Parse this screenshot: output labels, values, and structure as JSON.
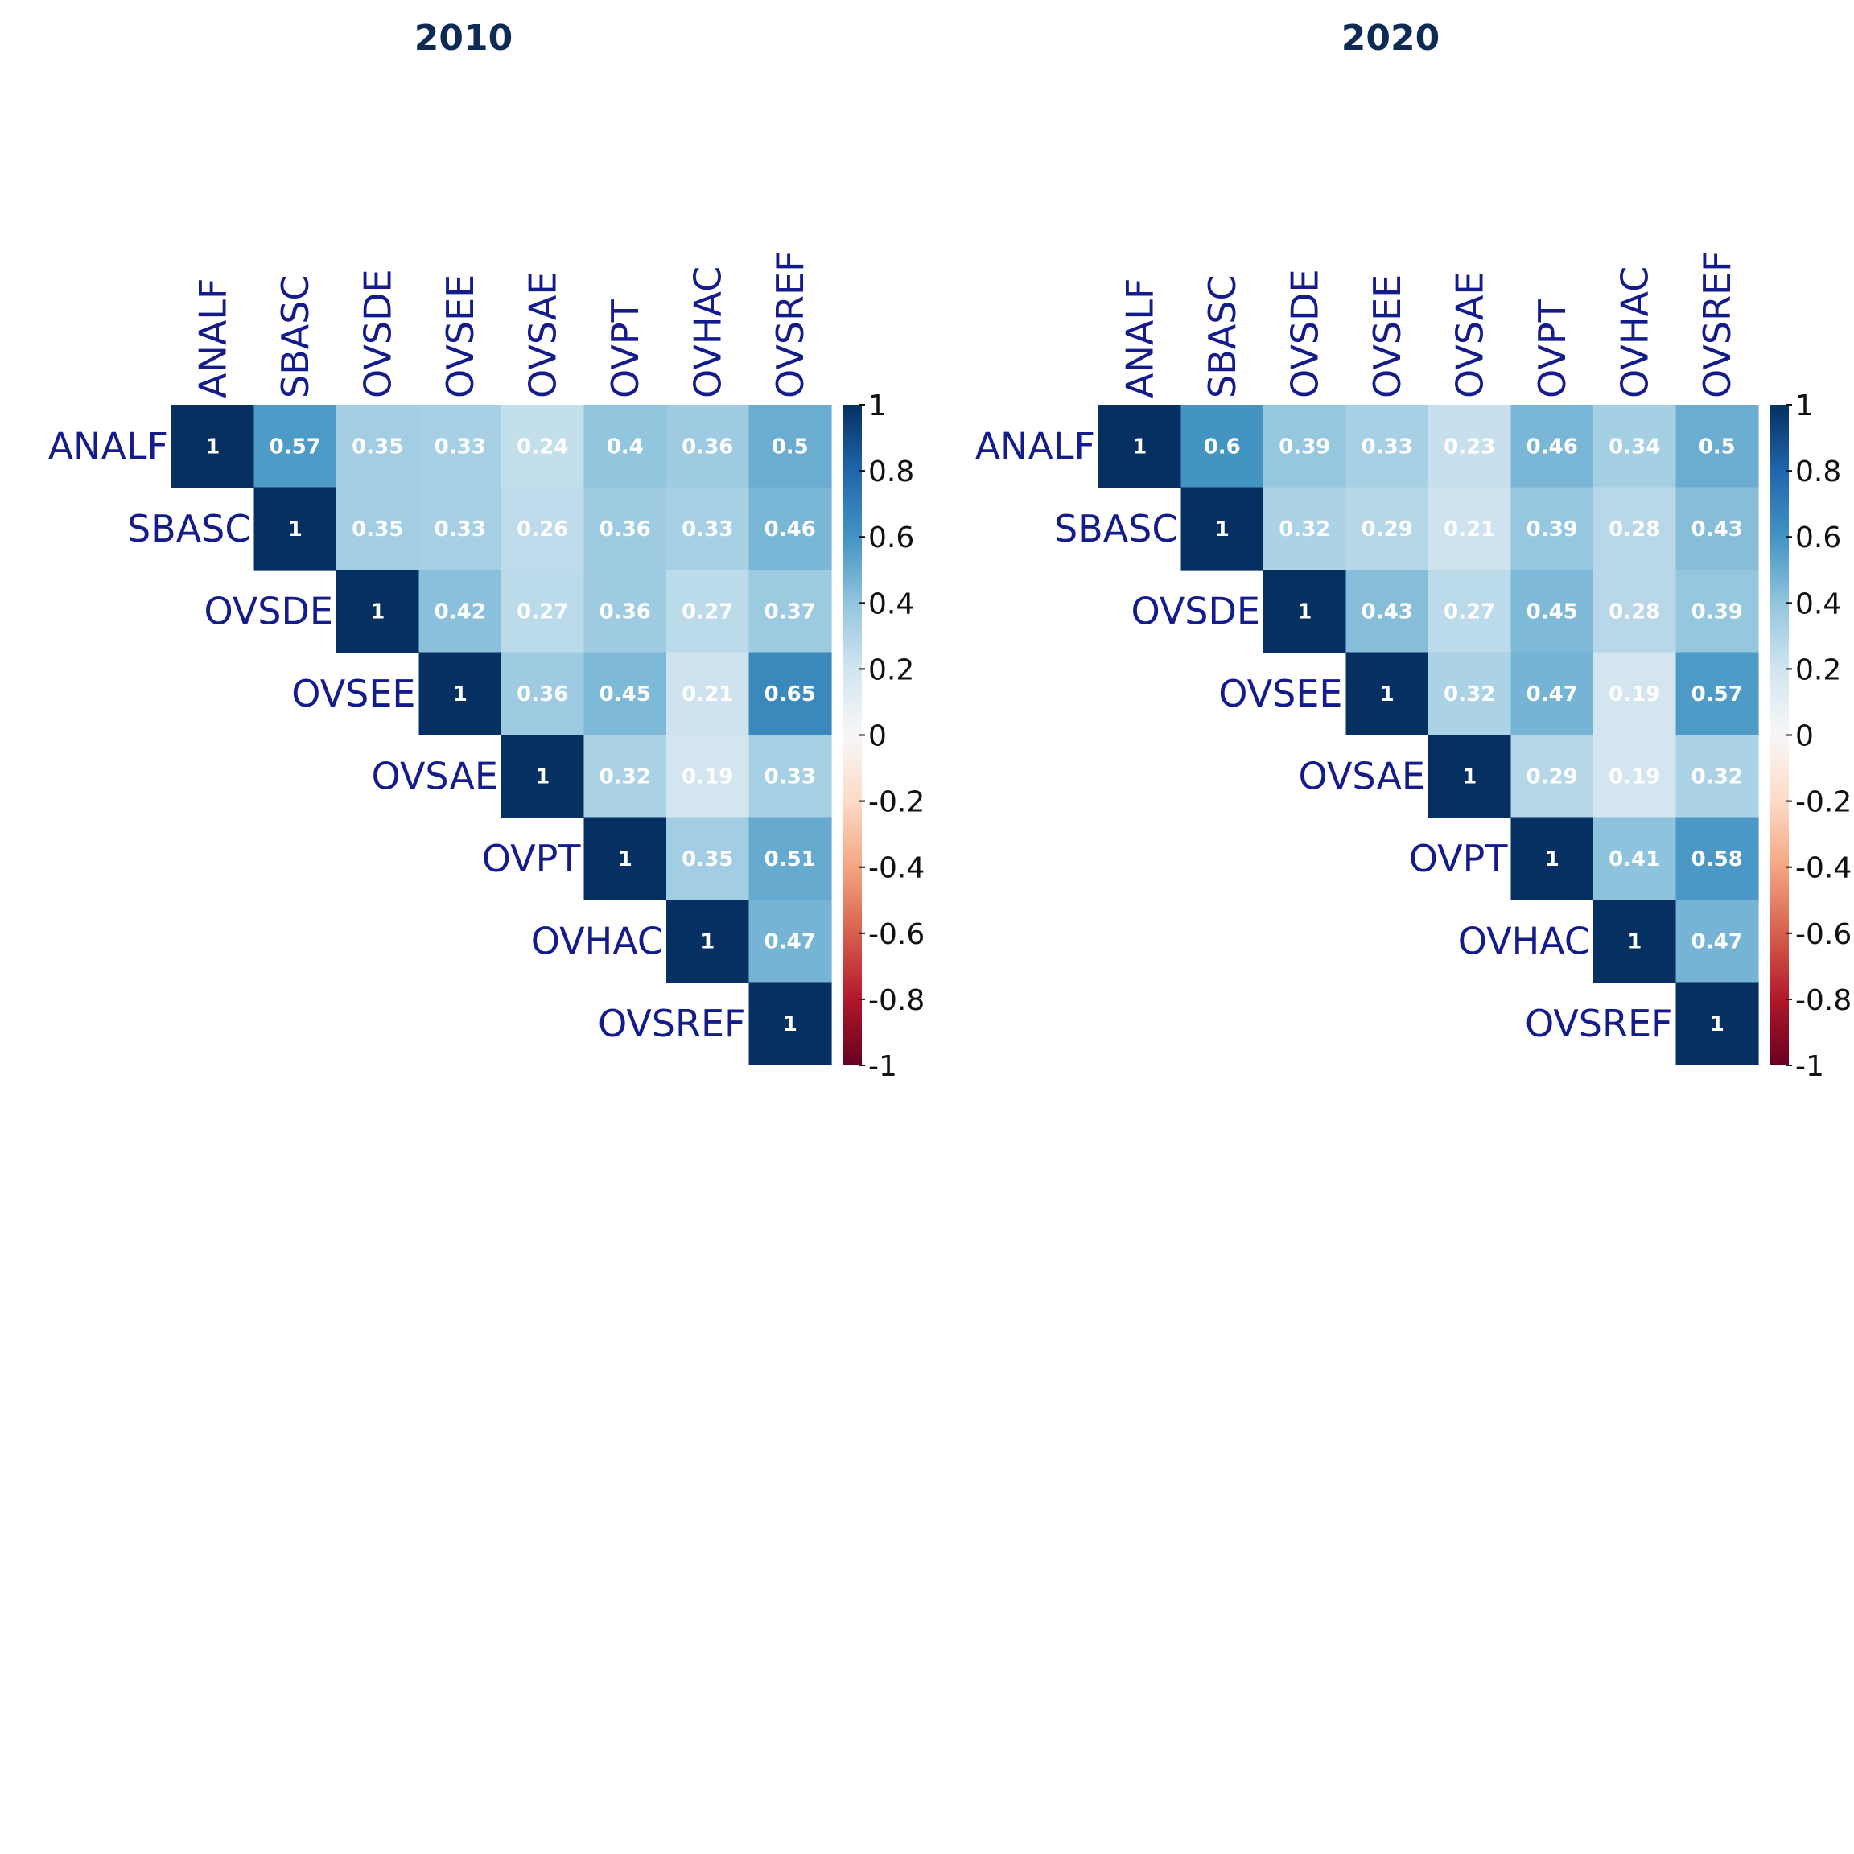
{
  "colors": {
    "title": "#0d2b55",
    "axis_label": "#141b8a",
    "cell_text": "#ffffff",
    "colorscale": [
      "#67001f",
      "#b2182b",
      "#d6604d",
      "#f4a582",
      "#fddbc7",
      "#f7f7f7",
      "#d1e5f0",
      "#92c5de",
      "#4393c3",
      "#2166ac",
      "#053061"
    ]
  },
  "chart_data": [
    {
      "type": "heatmap",
      "title": "2010",
      "labels": [
        "ANALF",
        "SBASC",
        "OVSDE",
        "OVSEE",
        "OVSAE",
        "OVPT",
        "OVHAC",
        "OVSREF"
      ],
      "matrix": [
        [
          1,
          0.57,
          0.35,
          0.33,
          0.24,
          0.4,
          0.36,
          0.5
        ],
        [
          null,
          1,
          0.35,
          0.33,
          0.26,
          0.36,
          0.33,
          0.46
        ],
        [
          null,
          null,
          1,
          0.42,
          0.27,
          0.36,
          0.27,
          0.37
        ],
        [
          null,
          null,
          null,
          1,
          0.36,
          0.45,
          0.21,
          0.65
        ],
        [
          null,
          null,
          null,
          null,
          1,
          0.32,
          0.19,
          0.33
        ],
        [
          null,
          null,
          null,
          null,
          null,
          1,
          0.35,
          0.51
        ],
        [
          null,
          null,
          null,
          null,
          null,
          null,
          1,
          0.47
        ],
        [
          null,
          null,
          null,
          null,
          null,
          null,
          null,
          1
        ]
      ],
      "colorbar_ticks": [
        "1",
        "0.8",
        "0.6",
        "0.4",
        "0.2",
        "0",
        "-0.2",
        "-0.4",
        "-0.6",
        "-0.8",
        "-1"
      ],
      "colorbar_range": [
        -1,
        1
      ]
    },
    {
      "type": "heatmap",
      "title": "2020",
      "labels": [
        "ANALF",
        "SBASC",
        "OVSDE",
        "OVSEE",
        "OVSAE",
        "OVPT",
        "OVHAC",
        "OVSREF"
      ],
      "matrix": [
        [
          1,
          0.6,
          0.39,
          0.33,
          0.23,
          0.46,
          0.34,
          0.5
        ],
        [
          null,
          1,
          0.32,
          0.29,
          0.21,
          0.39,
          0.28,
          0.43
        ],
        [
          null,
          null,
          1,
          0.43,
          0.27,
          0.45,
          0.28,
          0.39
        ],
        [
          null,
          null,
          null,
          1,
          0.32,
          0.47,
          0.19,
          0.57
        ],
        [
          null,
          null,
          null,
          null,
          1,
          0.29,
          0.19,
          0.32
        ],
        [
          null,
          null,
          null,
          null,
          null,
          1,
          0.41,
          0.58
        ],
        [
          null,
          null,
          null,
          null,
          null,
          null,
          1,
          0.47
        ],
        [
          null,
          null,
          null,
          null,
          null,
          null,
          null,
          1
        ]
      ],
      "colorbar_ticks": [
        "1",
        "0.8",
        "0.6",
        "0.4",
        "0.2",
        "0",
        "-0.2",
        "-0.4",
        "-0.6",
        "-0.8",
        "-1"
      ],
      "colorbar_range": [
        -1,
        1
      ]
    }
  ]
}
